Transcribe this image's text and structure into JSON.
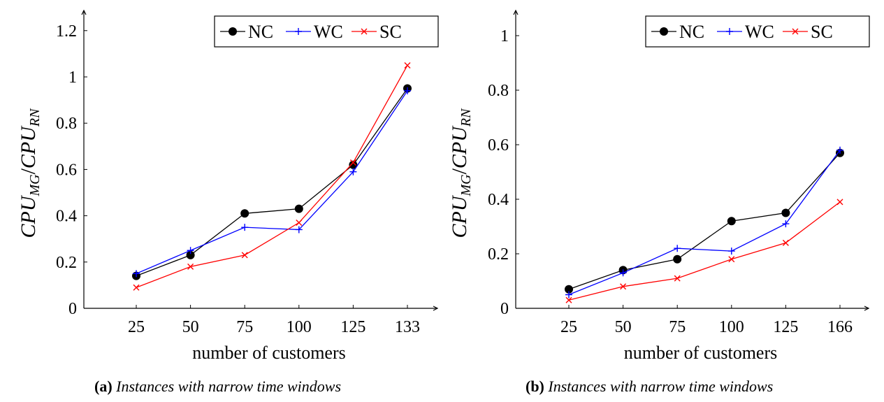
{
  "chart_data": [
    {
      "type": "line",
      "panel_label": "(a)",
      "caption": "Instances with narrow time windows",
      "categories": [
        "25",
        "50",
        "75",
        "100",
        "125",
        "133"
      ],
      "y_ticks": [
        "0",
        "0.2",
        "0.4",
        "0.6",
        "0.8",
        "1",
        "1.2"
      ],
      "ylim": [
        0,
        1.3
      ],
      "xlabel": "number of customers",
      "ylabel": {
        "main1": "CPU",
        "sub1": "MG",
        "sep": "/",
        "main2": "CPU",
        "sub2": "RN"
      },
      "legend_position": "top-right",
      "grid": false,
      "series": [
        {
          "name": "NC",
          "color": "#000000",
          "marker": "dot",
          "values": [
            0.14,
            0.23,
            0.41,
            0.43,
            0.62,
            0.95
          ]
        },
        {
          "name": "WC",
          "color": "#0000ff",
          "marker": "plus",
          "values": [
            0.15,
            0.25,
            0.35,
            0.34,
            0.59,
            0.94
          ]
        },
        {
          "name": "SC",
          "color": "#ff0000",
          "marker": "cross",
          "values": [
            0.09,
            0.18,
            0.23,
            0.37,
            0.63,
            1.05
          ]
        }
      ]
    },
    {
      "type": "line",
      "panel_label": "(b)",
      "caption": "Instances with narrow time windows",
      "categories": [
        "25",
        "50",
        "75",
        "100",
        "125",
        "166"
      ],
      "y_ticks": [
        "0",
        "0.2",
        "0.4",
        "0.6",
        "0.8",
        "1"
      ],
      "ylim": [
        0,
        1.1
      ],
      "xlabel": "number of customers",
      "ylabel": {
        "main1": "CPU",
        "sub1": "MG",
        "sep": "/",
        "main2": "CPU",
        "sub2": "RN"
      },
      "legend_position": "top-right",
      "grid": false,
      "series": [
        {
          "name": "NC",
          "color": "#000000",
          "marker": "dot",
          "values": [
            0.07,
            0.14,
            0.18,
            0.32,
            0.35,
            0.57
          ]
        },
        {
          "name": "WC",
          "color": "#0000ff",
          "marker": "plus",
          "values": [
            0.05,
            0.13,
            0.22,
            0.21,
            0.31,
            0.58
          ]
        },
        {
          "name": "SC",
          "color": "#ff0000",
          "marker": "cross",
          "values": [
            0.03,
            0.08,
            0.11,
            0.18,
            0.24,
            0.39
          ]
        }
      ]
    }
  ]
}
